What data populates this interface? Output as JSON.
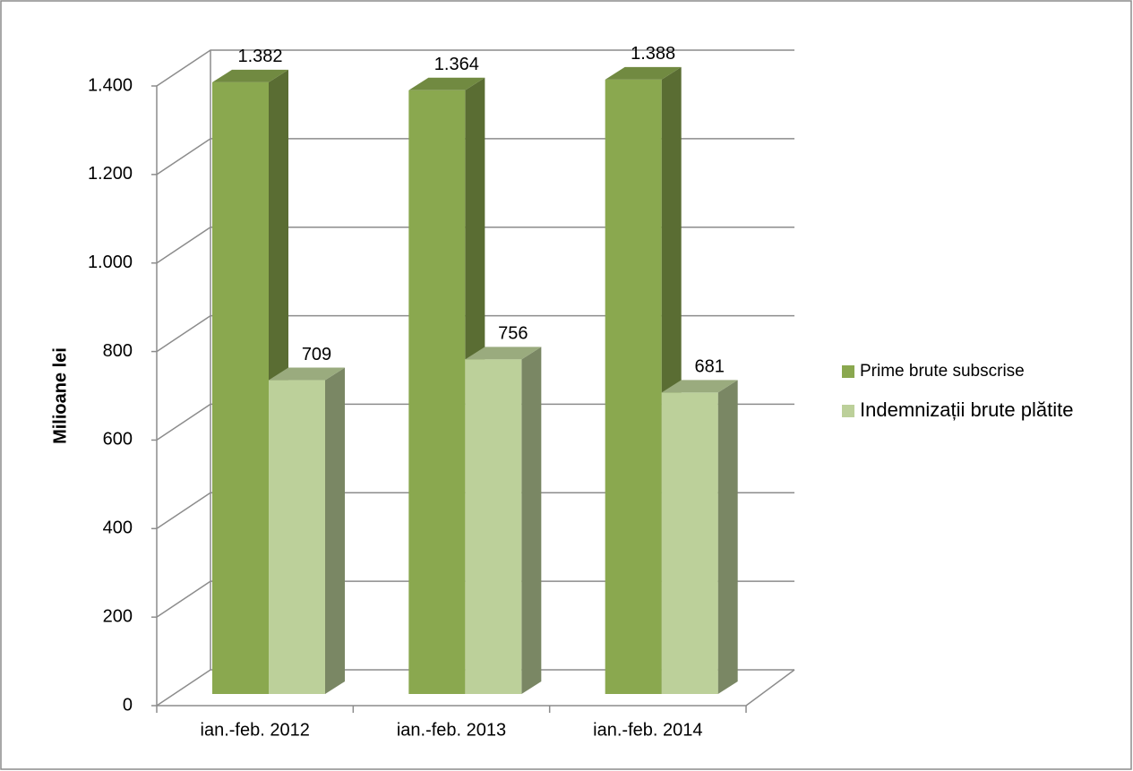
{
  "chart_data": {
    "type": "bar3d",
    "y_label": "Milioane lei",
    "categories": [
      "ian.-feb. 2012",
      "ian.-feb. 2013",
      "ian.-feb. 2014"
    ],
    "series": [
      {
        "name": "Prime brute subscrise",
        "color": "#8aa84f",
        "values": [
          1382,
          1364,
          1388
        ],
        "value_labels": [
          "1.382",
          "1.364",
          "1.388"
        ]
      },
      {
        "name": "Indemnizații brute plătite",
        "color": "#bcd09a",
        "values": [
          709,
          756,
          681
        ]
      }
    ],
    "ylim": [
      0,
      1400
    ],
    "yticks": [
      0,
      200,
      400,
      600,
      800,
      {
        "value": 1000,
        "label": "1.000"
      },
      {
        "value": 1200,
        "label": "1.200"
      },
      {
        "value": 1400,
        "label": "1.400"
      }
    ],
    "grid": true,
    "legend": "right"
  }
}
